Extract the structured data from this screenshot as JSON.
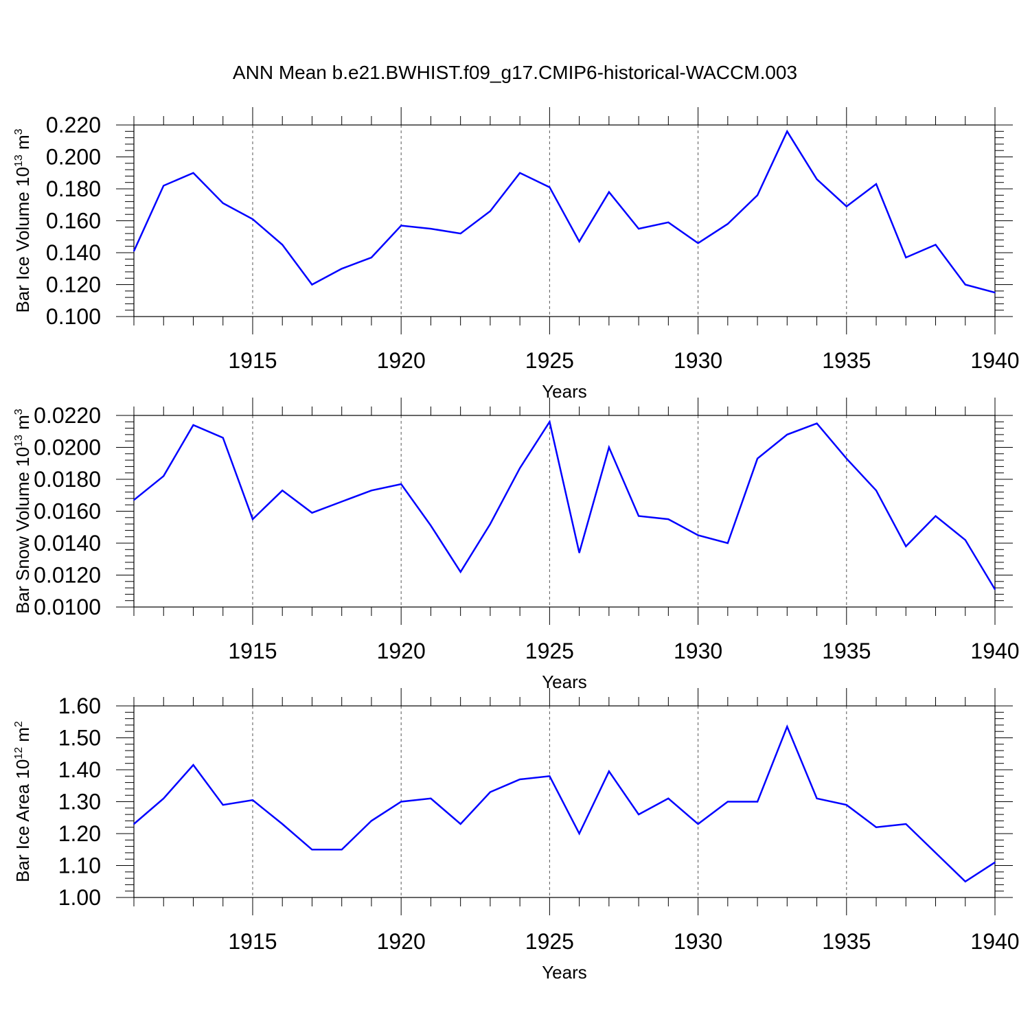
{
  "title": "ANN Mean b.e21.BWHIST.f09_g17.CMIP6-historical-WACCM.003",
  "line_color": "#0000ff",
  "chart_data": [
    {
      "type": "line",
      "xlabel": "Years",
      "ylabel": {
        "main": "Bar Ice Volume 10",
        "exp": "13",
        "unit": " m",
        "unit_exp": "3"
      },
      "xlim": [
        1911,
        1940
      ],
      "ylim": [
        0.1,
        0.22
      ],
      "x_ticks": [
        "1915",
        "1920",
        "1925",
        "1930",
        "1935",
        "1940"
      ],
      "y_ticks": [
        "0.100",
        "0.120",
        "0.140",
        "0.160",
        "0.180",
        "0.200",
        "0.220"
      ],
      "grid": "dashed vertical lines at labeled x ticks",
      "x": [
        1911,
        1912,
        1913,
        1914,
        1915,
        1916,
        1917,
        1918,
        1919,
        1920,
        1921,
        1922,
        1923,
        1924,
        1925,
        1926,
        1927,
        1928,
        1929,
        1930,
        1931,
        1932,
        1933,
        1934,
        1935,
        1936,
        1937,
        1938,
        1939,
        1940
      ],
      "y": [
        0.141,
        0.182,
        0.19,
        0.171,
        0.161,
        0.145,
        0.12,
        0.13,
        0.137,
        0.157,
        0.155,
        0.152,
        0.166,
        0.19,
        0.181,
        0.147,
        0.178,
        0.155,
        0.159,
        0.146,
        0.158,
        0.176,
        0.216,
        0.186,
        0.169,
        0.183,
        0.137,
        0.145,
        0.12,
        0.115
      ]
    },
    {
      "type": "line",
      "xlabel": "Years",
      "ylabel": {
        "main": "Bar Snow Volume 10",
        "exp": "13",
        "unit": " m",
        "unit_exp": "3"
      },
      "xlim": [
        1911,
        1940
      ],
      "ylim": [
        0.01,
        0.022
      ],
      "x_ticks": [
        "1915",
        "1920",
        "1925",
        "1930",
        "1935",
        "1940"
      ],
      "y_ticks": [
        "0.0100",
        "0.0120",
        "0.0140",
        "0.0160",
        "0.0180",
        "0.0200",
        "0.0220"
      ],
      "grid": "dashed vertical lines at labeled x ticks",
      "x": [
        1911,
        1912,
        1913,
        1914,
        1915,
        1916,
        1917,
        1918,
        1919,
        1920,
        1921,
        1922,
        1923,
        1924,
        1925,
        1926,
        1927,
        1928,
        1929,
        1930,
        1931,
        1932,
        1933,
        1934,
        1935,
        1936,
        1937,
        1938,
        1939,
        1940
      ],
      "y": [
        0.0167,
        0.0182,
        0.0214,
        0.0206,
        0.0155,
        0.0173,
        0.0159,
        0.0166,
        0.0173,
        0.0177,
        0.0151,
        0.0122,
        0.0152,
        0.0187,
        0.0216,
        0.0134,
        0.02,
        0.0157,
        0.0155,
        0.0145,
        0.014,
        0.0193,
        0.0208,
        0.0215,
        0.0193,
        0.0173,
        0.0138,
        0.0157,
        0.0142,
        0.0111
      ]
    },
    {
      "type": "line",
      "xlabel": "Years",
      "ylabel": {
        "main": "Bar Ice Area 10",
        "exp": "12",
        "unit": " m",
        "unit_exp": "2"
      },
      "xlim": [
        1911,
        1940
      ],
      "ylim": [
        1.0,
        1.6
      ],
      "x_ticks": [
        "1915",
        "1920",
        "1925",
        "1930",
        "1935",
        "1940"
      ],
      "y_ticks": [
        "1.00",
        "1.10",
        "1.20",
        "1.30",
        "1.40",
        "1.50",
        "1.60"
      ],
      "grid": "dashed vertical lines at labeled x ticks",
      "x": [
        1911,
        1912,
        1913,
        1914,
        1915,
        1916,
        1917,
        1918,
        1919,
        1920,
        1921,
        1922,
        1923,
        1924,
        1925,
        1926,
        1927,
        1928,
        1929,
        1930,
        1931,
        1932,
        1933,
        1934,
        1935,
        1936,
        1937,
        1938,
        1939,
        1940
      ],
      "y": [
        1.23,
        1.31,
        1.415,
        1.29,
        1.305,
        1.23,
        1.15,
        1.15,
        1.24,
        1.3,
        1.31,
        1.23,
        1.33,
        1.37,
        1.38,
        1.2,
        1.395,
        1.26,
        1.31,
        1.23,
        1.3,
        1.3,
        1.535,
        1.31,
        1.29,
        1.22,
        1.23,
        1.14,
        1.05,
        1.11
      ]
    }
  ]
}
